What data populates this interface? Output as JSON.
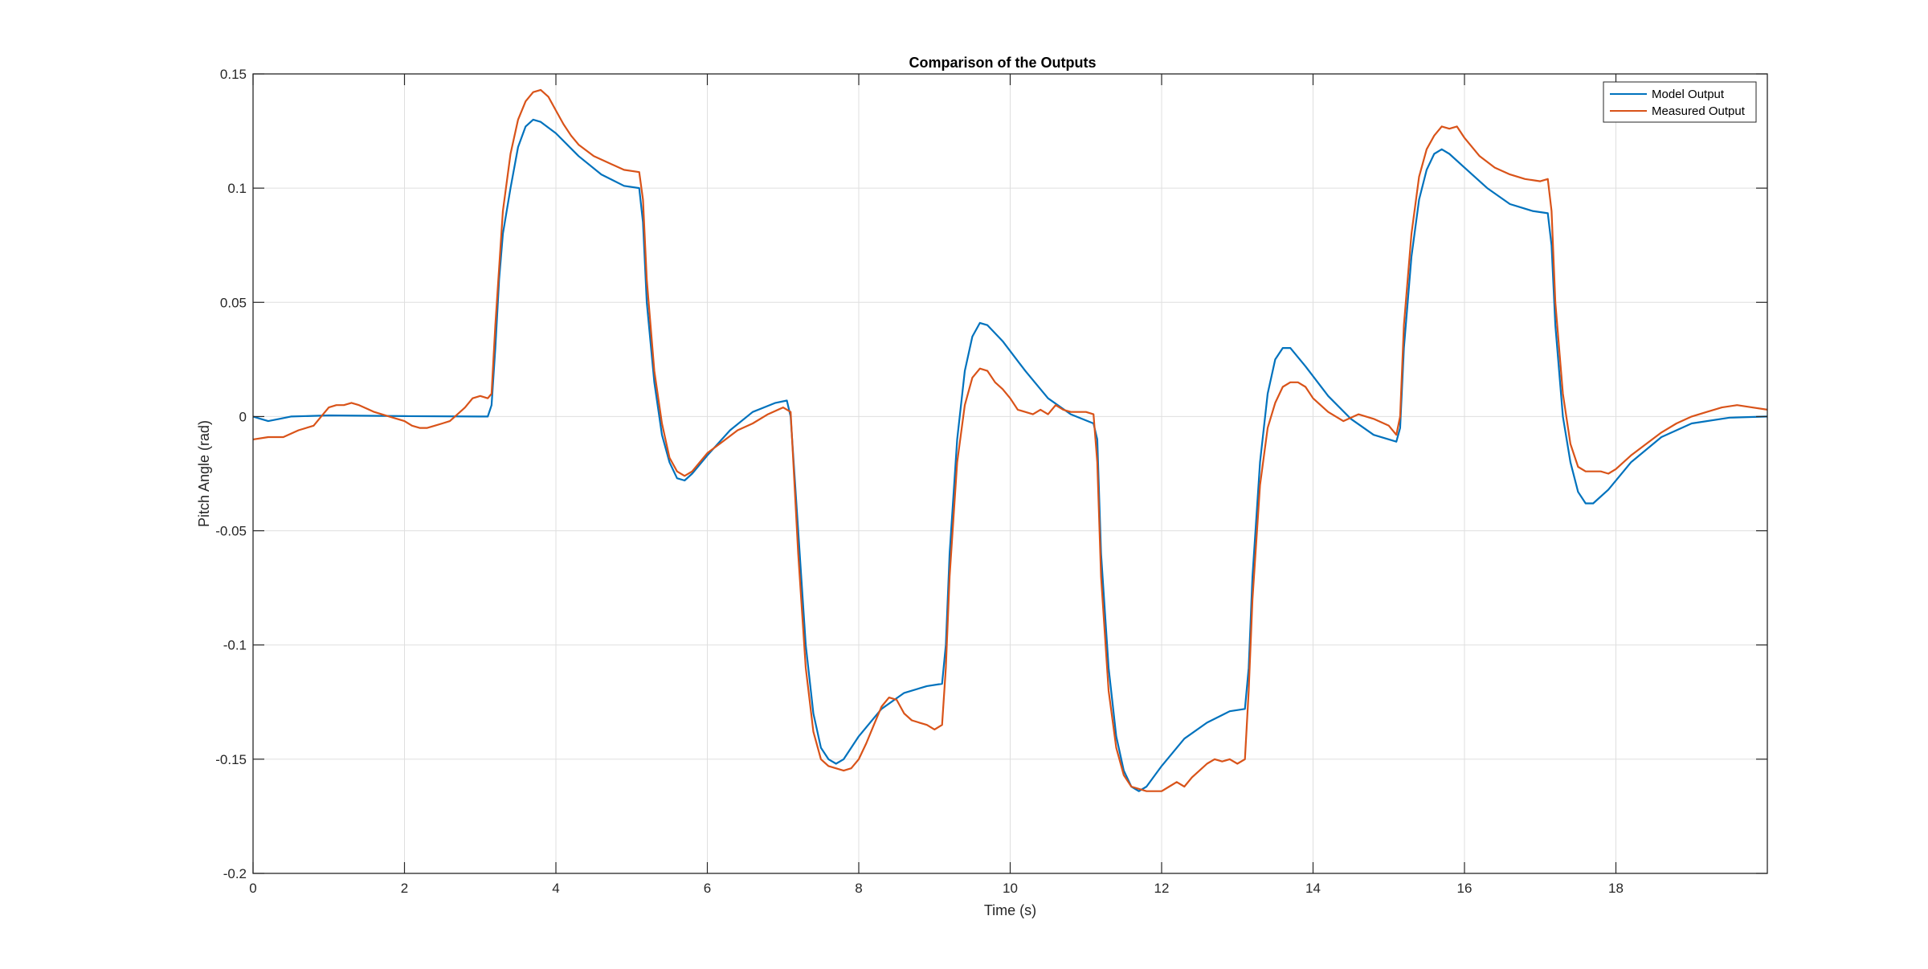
{
  "chart_data": {
    "type": "line",
    "title": "Comparison of the Outputs",
    "xlabel": "Time (s)",
    "ylabel": "Pitch Angle (rad)",
    "xlim": [
      0,
      20
    ],
    "ylim": [
      -0.2,
      0.15
    ],
    "x_ticks": [
      0,
      2,
      4,
      6,
      8,
      10,
      12,
      14,
      16,
      18
    ],
    "x_tick_labels": [
      "0",
      "2",
      "4",
      "6",
      "8",
      "10",
      "12",
      "14",
      "16",
      "18"
    ],
    "y_ticks": [
      0.15,
      0.1,
      0.05,
      0,
      -0.05,
      -0.1,
      -0.15,
      -0.2
    ],
    "y_tick_labels": [
      "0.15",
      "0.1",
      "0.05",
      "0",
      "-0.05",
      "-0.1",
      "-0.15",
      "-0.2"
    ],
    "grid": true,
    "legend_position": "top-right",
    "series": [
      {
        "name": "Model Output",
        "color": "#0072BD",
        "points": [
          [
            0,
            0
          ],
          [
            0.1,
            -0.001
          ],
          [
            0.2,
            -0.002
          ],
          [
            0.35,
            -0.001
          ],
          [
            0.5,
            0
          ],
          [
            1,
            0.0005
          ],
          [
            2,
            0.0002
          ],
          [
            3,
            0
          ],
          [
            3.1,
            0
          ],
          [
            3.15,
            0.005
          ],
          [
            3.2,
            0.03
          ],
          [
            3.25,
            0.06
          ],
          [
            3.3,
            0.08
          ],
          [
            3.4,
            0.1
          ],
          [
            3.5,
            0.118
          ],
          [
            3.6,
            0.127
          ],
          [
            3.7,
            0.13
          ],
          [
            3.8,
            0.129
          ],
          [
            4,
            0.124
          ],
          [
            4.3,
            0.114
          ],
          [
            4.6,
            0.106
          ],
          [
            4.9,
            0.101
          ],
          [
            5.1,
            0.1
          ],
          [
            5.15,
            0.085
          ],
          [
            5.2,
            0.05
          ],
          [
            5.3,
            0.015
          ],
          [
            5.4,
            -0.008
          ],
          [
            5.5,
            -0.02
          ],
          [
            5.6,
            -0.027
          ],
          [
            5.7,
            -0.028
          ],
          [
            5.8,
            -0.025
          ],
          [
            6,
            -0.017
          ],
          [
            6.3,
            -0.006
          ],
          [
            6.6,
            0.002
          ],
          [
            6.9,
            0.006
          ],
          [
            7.05,
            0.007
          ],
          [
            7.1,
            0
          ],
          [
            7.2,
            -0.05
          ],
          [
            7.3,
            -0.1
          ],
          [
            7.4,
            -0.13
          ],
          [
            7.5,
            -0.145
          ],
          [
            7.6,
            -0.15
          ],
          [
            7.7,
            -0.152
          ],
          [
            7.8,
            -0.15
          ],
          [
            8,
            -0.14
          ],
          [
            8.3,
            -0.128
          ],
          [
            8.6,
            -0.121
          ],
          [
            8.9,
            -0.118
          ],
          [
            9.1,
            -0.117
          ],
          [
            9.15,
            -0.1
          ],
          [
            9.2,
            -0.06
          ],
          [
            9.3,
            -0.01
          ],
          [
            9.4,
            0.02
          ],
          [
            9.5,
            0.035
          ],
          [
            9.6,
            0.041
          ],
          [
            9.7,
            0.04
          ],
          [
            9.9,
            0.033
          ],
          [
            10.2,
            0.02
          ],
          [
            10.5,
            0.008
          ],
          [
            10.8,
            0.001
          ],
          [
            11.1,
            -0.003
          ],
          [
            11.15,
            -0.01
          ],
          [
            11.2,
            -0.06
          ],
          [
            11.3,
            -0.11
          ],
          [
            11.4,
            -0.14
          ],
          [
            11.5,
            -0.155
          ],
          [
            11.6,
            -0.162
          ],
          [
            11.7,
            -0.164
          ],
          [
            11.8,
            -0.162
          ],
          [
            12,
            -0.153
          ],
          [
            12.3,
            -0.141
          ],
          [
            12.6,
            -0.134
          ],
          [
            12.9,
            -0.129
          ],
          [
            13.1,
            -0.128
          ],
          [
            13.15,
            -0.11
          ],
          [
            13.2,
            -0.07
          ],
          [
            13.3,
            -0.02
          ],
          [
            13.4,
            0.01
          ],
          [
            13.5,
            0.025
          ],
          [
            13.6,
            0.03
          ],
          [
            13.7,
            0.03
          ],
          [
            13.9,
            0.022
          ],
          [
            14.2,
            0.009
          ],
          [
            14.5,
            -0.001
          ],
          [
            14.8,
            -0.008
          ],
          [
            15.1,
            -0.011
          ],
          [
            15.15,
            -0.005
          ],
          [
            15.2,
            0.03
          ],
          [
            15.3,
            0.07
          ],
          [
            15.4,
            0.095
          ],
          [
            15.5,
            0.108
          ],
          [
            15.6,
            0.115
          ],
          [
            15.7,
            0.117
          ],
          [
            15.8,
            0.115
          ],
          [
            16,
            0.109
          ],
          [
            16.3,
            0.1
          ],
          [
            16.6,
            0.093
          ],
          [
            16.9,
            0.09
          ],
          [
            17.1,
            0.089
          ],
          [
            17.15,
            0.075
          ],
          [
            17.2,
            0.04
          ],
          [
            17.3,
            0
          ],
          [
            17.4,
            -0.02
          ],
          [
            17.5,
            -0.033
          ],
          [
            17.6,
            -0.038
          ],
          [
            17.7,
            -0.038
          ],
          [
            17.9,
            -0.032
          ],
          [
            18.2,
            -0.02
          ],
          [
            18.6,
            -0.009
          ],
          [
            19,
            -0.003
          ],
          [
            19.5,
            -0.0005
          ],
          [
            20,
            0
          ]
        ]
      },
      {
        "name": "Measured Output",
        "color": "#D95319",
        "points": [
          [
            0,
            -0.01
          ],
          [
            0.2,
            -0.009
          ],
          [
            0.4,
            -0.009
          ],
          [
            0.6,
            -0.006
          ],
          [
            0.8,
            -0.004
          ],
          [
            0.9,
            0
          ],
          [
            1,
            0.004
          ],
          [
            1.1,
            0.005
          ],
          [
            1.2,
            0.005
          ],
          [
            1.3,
            0.006
          ],
          [
            1.4,
            0.005
          ],
          [
            1.6,
            0.002
          ],
          [
            1.8,
            0
          ],
          [
            2,
            -0.002
          ],
          [
            2.1,
            -0.004
          ],
          [
            2.2,
            -0.005
          ],
          [
            2.3,
            -0.005
          ],
          [
            2.4,
            -0.004
          ],
          [
            2.5,
            -0.003
          ],
          [
            2.6,
            -0.002
          ],
          [
            2.7,
            0.001
          ],
          [
            2.8,
            0.004
          ],
          [
            2.9,
            0.008
          ],
          [
            3,
            0.009
          ],
          [
            3.1,
            0.008
          ],
          [
            3.15,
            0.01
          ],
          [
            3.2,
            0.04
          ],
          [
            3.3,
            0.09
          ],
          [
            3.4,
            0.115
          ],
          [
            3.5,
            0.13
          ],
          [
            3.6,
            0.138
          ],
          [
            3.7,
            0.142
          ],
          [
            3.8,
            0.143
          ],
          [
            3.9,
            0.14
          ],
          [
            4,
            0.134
          ],
          [
            4.1,
            0.128
          ],
          [
            4.2,
            0.123
          ],
          [
            4.3,
            0.119
          ],
          [
            4.5,
            0.114
          ],
          [
            4.7,
            0.111
          ],
          [
            4.9,
            0.108
          ],
          [
            5.1,
            0.107
          ],
          [
            5.15,
            0.095
          ],
          [
            5.2,
            0.06
          ],
          [
            5.3,
            0.02
          ],
          [
            5.4,
            -0.003
          ],
          [
            5.5,
            -0.018
          ],
          [
            5.6,
            -0.024
          ],
          [
            5.7,
            -0.026
          ],
          [
            5.8,
            -0.024
          ],
          [
            6,
            -0.016
          ],
          [
            6.2,
            -0.011
          ],
          [
            6.4,
            -0.006
          ],
          [
            6.6,
            -0.003
          ],
          [
            6.8,
            0.001
          ],
          [
            7,
            0.004
          ],
          [
            7.1,
            0.002
          ],
          [
            7.2,
            -0.06
          ],
          [
            7.3,
            -0.11
          ],
          [
            7.4,
            -0.138
          ],
          [
            7.5,
            -0.15
          ],
          [
            7.6,
            -0.153
          ],
          [
            7.8,
            -0.155
          ],
          [
            7.9,
            -0.154
          ],
          [
            8,
            -0.15
          ],
          [
            8.1,
            -0.143
          ],
          [
            8.2,
            -0.135
          ],
          [
            8.3,
            -0.127
          ],
          [
            8.4,
            -0.123
          ],
          [
            8.5,
            -0.124
          ],
          [
            8.6,
            -0.13
          ],
          [
            8.7,
            -0.133
          ],
          [
            8.8,
            -0.134
          ],
          [
            8.9,
            -0.135
          ],
          [
            9,
            -0.137
          ],
          [
            9.1,
            -0.135
          ],
          [
            9.15,
            -0.11
          ],
          [
            9.2,
            -0.07
          ],
          [
            9.3,
            -0.02
          ],
          [
            9.4,
            0.005
          ],
          [
            9.5,
            0.017
          ],
          [
            9.6,
            0.021
          ],
          [
            9.7,
            0.02
          ],
          [
            9.8,
            0.015
          ],
          [
            9.9,
            0.012
          ],
          [
            10,
            0.008
          ],
          [
            10.1,
            0.003
          ],
          [
            10.2,
            0.002
          ],
          [
            10.3,
            0.001
          ],
          [
            10.4,
            0.003
          ],
          [
            10.5,
            0.001
          ],
          [
            10.6,
            0.005
          ],
          [
            10.7,
            0.003
          ],
          [
            10.8,
            0.002
          ],
          [
            11,
            0.002
          ],
          [
            11.1,
            0.001
          ],
          [
            11.15,
            -0.02
          ],
          [
            11.2,
            -0.07
          ],
          [
            11.3,
            -0.12
          ],
          [
            11.4,
            -0.145
          ],
          [
            11.5,
            -0.157
          ],
          [
            11.6,
            -0.162
          ],
          [
            11.8,
            -0.164
          ],
          [
            12,
            -0.164
          ],
          [
            12.1,
            -0.162
          ],
          [
            12.2,
            -0.16
          ],
          [
            12.3,
            -0.162
          ],
          [
            12.4,
            -0.158
          ],
          [
            12.5,
            -0.155
          ],
          [
            12.6,
            -0.152
          ],
          [
            12.7,
            -0.15
          ],
          [
            12.8,
            -0.151
          ],
          [
            12.9,
            -0.15
          ],
          [
            13,
            -0.152
          ],
          [
            13.1,
            -0.15
          ],
          [
            13.15,
            -0.12
          ],
          [
            13.2,
            -0.08
          ],
          [
            13.3,
            -0.03
          ],
          [
            13.4,
            -0.005
          ],
          [
            13.5,
            0.006
          ],
          [
            13.6,
            0.013
          ],
          [
            13.7,
            0.015
          ],
          [
            13.8,
            0.015
          ],
          [
            13.9,
            0.013
          ],
          [
            14,
            0.008
          ],
          [
            14.2,
            0.002
          ],
          [
            14.4,
            -0.002
          ],
          [
            14.6,
            0.001
          ],
          [
            14.8,
            -0.001
          ],
          [
            15,
            -0.004
          ],
          [
            15.1,
            -0.008
          ],
          [
            15.15,
            0
          ],
          [
            15.2,
            0.04
          ],
          [
            15.3,
            0.08
          ],
          [
            15.4,
            0.105
          ],
          [
            15.5,
            0.117
          ],
          [
            15.6,
            0.123
          ],
          [
            15.7,
            0.127
          ],
          [
            15.8,
            0.126
          ],
          [
            15.9,
            0.127
          ],
          [
            16,
            0.122
          ],
          [
            16.2,
            0.114
          ],
          [
            16.4,
            0.109
          ],
          [
            16.6,
            0.106
          ],
          [
            16.8,
            0.104
          ],
          [
            17,
            0.103
          ],
          [
            17.1,
            0.104
          ],
          [
            17.15,
            0.09
          ],
          [
            17.2,
            0.05
          ],
          [
            17.3,
            0.01
          ],
          [
            17.4,
            -0.012
          ],
          [
            17.5,
            -0.022
          ],
          [
            17.6,
            -0.024
          ],
          [
            17.8,
            -0.024
          ],
          [
            17.9,
            -0.025
          ],
          [
            18,
            -0.023
          ],
          [
            18.2,
            -0.017
          ],
          [
            18.4,
            -0.012
          ],
          [
            18.6,
            -0.007
          ],
          [
            18.8,
            -0.003
          ],
          [
            19,
            0
          ],
          [
            19.2,
            0.002
          ],
          [
            19.4,
            0.004
          ],
          [
            19.6,
            0.005
          ],
          [
            19.8,
            0.004
          ],
          [
            20,
            0.003
          ]
        ]
      }
    ]
  }
}
